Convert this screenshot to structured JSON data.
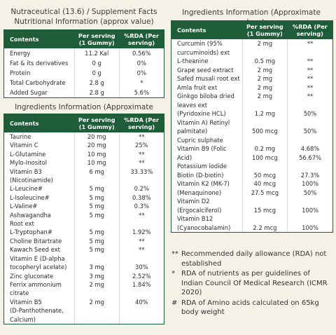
{
  "left": {
    "title_line1": "Nutraceutical (13.6) / Supplement Facts",
    "title_line2": "Nutritional Information (approx value)",
    "nutrition_table": {
      "headers": [
        "Contents",
        "Per serving (1 Gummy)",
        "%RDA (Per serving)"
      ],
      "rows": [
        [
          "Energy",
          "11.2 Kal",
          "0.56%"
        ],
        [
          "Fat & its derivatives",
          "0 g",
          "0%"
        ],
        [
          "Protein",
          "0 g",
          "0%"
        ],
        [
          "Total Carbohydrate",
          "2.8 g",
          "*"
        ],
        [
          "Added Sugar",
          "2.8 g",
          "5.6%"
        ]
      ]
    },
    "ingredients_title": "Ingredients Information (Approximate values)",
    "ingredients_table": {
      "headers": [
        "Contents",
        "Per serving (1 Gummy)",
        "%RDA (Per serving)"
      ],
      "rows": [
        [
          "Taurine",
          "20 mg",
          "**"
        ],
        [
          "Vitamin C",
          "20 mg",
          "25%"
        ],
        [
          "L-Glutamine",
          "10 mg",
          "**"
        ],
        [
          "Mylo-Inositol",
          "10 mg",
          "**"
        ],
        [
          "Vitamin B3",
          "6 mg",
          "33.33%"
        ],
        [
          "(Nicotinamide)",
          null,
          null
        ],
        [
          "L-Leucine#",
          "5 mg",
          "0.2%"
        ],
        [
          "L-Isoleucine#",
          "5 mg",
          "0.38%"
        ],
        [
          "L-Valine#",
          "5 mg",
          "0.3%"
        ],
        [
          "Ashwagandha",
          "5 mg",
          "**"
        ],
        [
          "Root ext",
          null,
          null
        ],
        [
          "L-Tryptophan#",
          "5 mg",
          "1.92%"
        ],
        [
          "Choline Bitartrate",
          "5 mg",
          "**"
        ],
        [
          "Kawach Seed ext",
          "5 mg",
          "**"
        ],
        [
          "Vitamin E (D-alpha",
          null,
          null
        ],
        [
          "tocopheryl acelate)",
          "3 mg",
          "30%"
        ],
        [
          "Zinc gluconate",
          "3 mg",
          "2.52%"
        ],
        [
          "Ferrix ammonium",
          "2 mg",
          "1.84%"
        ],
        [
          "citrate",
          null,
          null
        ],
        [
          "Vitamin B5",
          "2 mg",
          "40%"
        ],
        [
          "(D-Panthothenate,",
          null,
          null
        ],
        [
          "Calcium)",
          null,
          null
        ]
      ]
    }
  },
  "right": {
    "ingredients_title": "Ingredients Information (Approximate values)",
    "ingredients_table": {
      "headers": [
        "Contents",
        "Per serving (1 Gummy)",
        "%RDA (Per serving)"
      ],
      "rows": [
        [
          "Curcumin (95%",
          "2 mg",
          "**"
        ],
        [
          "curcuminoids) ext",
          null,
          null
        ],
        [
          "L-theanine",
          "0.5 mg",
          "**"
        ],
        [
          "Grape seed extract",
          "2 mg",
          "**"
        ],
        [
          "Safed musali root ext",
          "2 mg",
          "**"
        ],
        [
          "Amla fruit ext",
          "2 mg",
          "**"
        ],
        [
          "Ginkgo biloba dried",
          "2 mg",
          "**"
        ],
        [
          "leaves ext",
          null,
          null
        ],
        [
          "(Pyridoxine HCL)",
          "1.2 mg",
          "50%"
        ],
        [
          "Vitamin A) Retinyl",
          null,
          null
        ],
        [
          "palmitate)",
          "500 mcg",
          "50%"
        ],
        [
          "Cupric sulphate",
          null,
          null
        ],
        [
          "Vitamin B9 (Folic",
          "0.2 mg",
          "4.68%"
        ],
        [
          "Acid)",
          "100 mcg",
          "56.67%"
        ],
        [
          "Potassium iodide",
          null,
          null
        ],
        [
          "Biotin (D-biotin)",
          "50 mcg",
          "27.3%"
        ],
        [
          "Vitamin K2 (MK-7)",
          "40 mcg",
          "100%"
        ],
        [
          "(Menaquinone)",
          "27.5 mcg",
          "50%"
        ],
        [
          "Vitamin D2",
          null,
          null
        ],
        [
          "(Ergocalciferol)",
          "15 mcg",
          "100%"
        ],
        [
          "Vitamin B12",
          null,
          null
        ],
        [
          "(Cyanocobalamin)",
          "2.2 mcg",
          "100%"
        ]
      ]
    },
    "footnotes": [
      {
        "symbol": "**",
        "text": "Recommended daily allowance (RDA) not established"
      },
      {
        "symbol": "*",
        "text": "RDA of nutrients as per guidelines of Indian Council Of Medical Research (ICMR 2020)"
      },
      {
        "symbol": "#",
        "text": "RDA of Amino acids calculated on 65kg body weight"
      }
    ]
  }
}
